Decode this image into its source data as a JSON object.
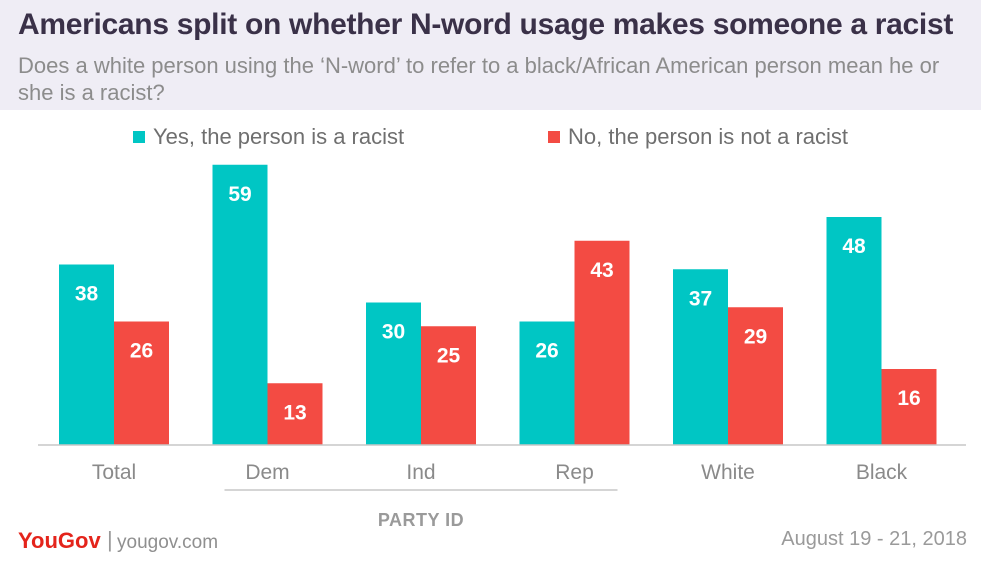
{
  "chart_data": {
    "type": "bar",
    "title": "Americans split on whether N-word usage makes someone a racist",
    "subtitle": "Does a white person using the ‘N-word’ to refer to a black/African American person mean he or she is a racist?",
    "categories": [
      "Total",
      "Dem",
      "Ind",
      "Rep",
      "White",
      "Black"
    ],
    "series": [
      {
        "name": "Yes, the person is a racist",
        "values": [
          38,
          59,
          30,
          26,
          37,
          48
        ],
        "color": "#00c6c4"
      },
      {
        "name": "No, the person is not a racist",
        "values": [
          26,
          13,
          25,
          43,
          29,
          16
        ],
        "color": "#f34b43"
      }
    ],
    "group_label": "PARTY ID",
    "group_spans_categories": [
      "Dem",
      "Ind",
      "Rep"
    ],
    "ylim": [
      0,
      60
    ],
    "grid": false,
    "legend_position": "top",
    "xlabel": "",
    "ylabel": ""
  },
  "footer": {
    "brand": "YouGov",
    "separator": "|",
    "url": "yougov.com",
    "date": "August 19 - 21, 2018"
  },
  "colors": {
    "header_bg": "#efedf5",
    "title": "#3a3148",
    "brand": "#e4241b"
  }
}
